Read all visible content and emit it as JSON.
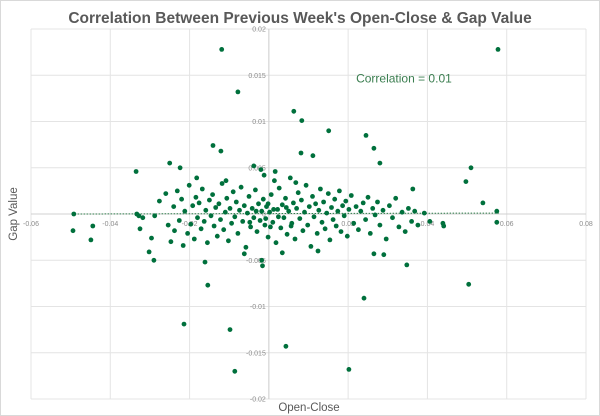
{
  "chart_data": {
    "type": "scatter",
    "title": "Correlation Between Previous Week's Open-Close & Gap Value",
    "xlabel": "Open-Close",
    "ylabel": "Gap Value",
    "xlim": [
      -0.06,
      0.08
    ],
    "ylim": [
      -0.02,
      0.02
    ],
    "xticks": [
      -0.06,
      -0.04,
      -0.02,
      0,
      0.02,
      0.04,
      0.06,
      0.08
    ],
    "xtick_labels": [
      "-0.06",
      "-0.04",
      "-0.02",
      "0",
      "0.02",
      "0.04",
      "0.06",
      "0.08"
    ],
    "yticks": [
      -0.02,
      -0.015,
      -0.01,
      -0.005,
      0,
      0.005,
      0.01,
      0.015,
      0.02
    ],
    "ytick_labels": [
      "-0.02",
      "-0.015",
      "-0.01",
      "-0.005",
      "0",
      "0.005",
      "0.01",
      "0.015",
      "0.02"
    ],
    "grid": true,
    "annotation": {
      "text": "Correlation = 0.01",
      "x": 0.022,
      "y": 0.0142
    },
    "trendline": {
      "x": [
        -0.049,
        0.058
      ],
      "y": [
        0.0,
        0.0001
      ],
      "style": "dotted"
    },
    "point_color": "#00703c",
    "points": [
      [
        -0.0119,
        0.0178
      ],
      [
        0.0578,
        0.0178
      ],
      [
        -0.0078,
        0.0132
      ],
      [
        0.0063,
        0.0111
      ],
      [
        0.0083,
        0.0101
      ],
      [
        0.0151,
        0.009
      ],
      [
        0.0245,
        0.0085
      ],
      [
        0.0265,
        0.0071
      ],
      [
        -0.0141,
        0.0074
      ],
      [
        -0.0121,
        0.0068
      ],
      [
        0.0081,
        0.0066
      ],
      [
        0.0111,
        0.0063
      ],
      [
        0.028,
        0.0055
      ],
      [
        0.051,
        0.005
      ],
      [
        0.0497,
        0.0035
      ],
      [
        0.0363,
        0.0027
      ],
      [
        0.054,
        0.0012
      ],
      [
        0.0575,
        0.0003
      ],
      [
        0.0575,
        -0.0009
      ],
      [
        0.0504,
        -0.0076
      ],
      [
        -0.0492,
        0.0
      ],
      [
        -0.0494,
        -0.0018
      ],
      [
        -0.0449,
        -0.0028
      ],
      [
        -0.0444,
        -0.0013
      ],
      [
        -0.0214,
        -0.0119
      ],
      [
        -0.0098,
        -0.0125
      ],
      [
        -0.0086,
        -0.017
      ],
      [
        0.0043,
        -0.0143
      ],
      [
        0.0202,
        -0.0168
      ],
      [
        0.024,
        -0.0091
      ],
      [
        -0.0154,
        -0.0077
      ],
      [
        -0.0161,
        -0.0052
      ],
      [
        -0.029,
        -0.005
      ],
      [
        -0.0018,
        -0.005
      ],
      [
        0.0348,
        -0.0055
      ],
      [
        0.029,
        -0.0044
      ],
      [
        0.0265,
        -0.0043
      ],
      [
        0.0406,
        -0.0008
      ],
      [
        0.0439,
        -0.001
      ],
      [
        0.0441,
        -0.0013
      ],
      [
        -0.0335,
        0.0046
      ],
      [
        -0.025,
        0.0055
      ],
      [
        -0.0224,
        0.005
      ],
      [
        -0.0182,
        0.0039
      ],
      [
        -0.0038,
        0.0052
      ],
      [
        -0.002,
        0.0048
      ],
      [
        -0.0016,
        -0.0056
      ],
      [
        -0.0333,
        0.0
      ],
      [
        -0.0328,
        -0.0002
      ],
      [
        -0.0318,
        -0.0004
      ],
      [
        -0.0325,
        -0.0016
      ],
      [
        -0.0288,
        -0.0002
      ],
      [
        -0.0296,
        -0.0026
      ],
      [
        -0.0302,
        -0.0041
      ],
      [
        -0.0276,
        0.0014
      ],
      [
        -0.026,
        0.0022
      ],
      [
        -0.0254,
        -0.0012
      ],
      [
        -0.0247,
        -0.003
      ],
      [
        -0.024,
        0.0008
      ],
      [
        -0.0238,
        -0.0018
      ],
      [
        -0.0231,
        0.0025
      ],
      [
        -0.0226,
        -0.0007
      ],
      [
        -0.022,
        0.0016
      ],
      [
        -0.0216,
        -0.0034
      ],
      [
        -0.0212,
        0.0003
      ],
      [
        -0.0205,
        -0.0021
      ],
      [
        -0.0201,
        0.0031
      ],
      [
        -0.0197,
        -0.0011
      ],
      [
        -0.0192,
        0.0009
      ],
      [
        -0.0188,
        -0.0027
      ],
      [
        -0.0184,
        0.0018
      ],
      [
        -0.018,
        -0.0004
      ],
      [
        -0.0176,
        0.0012
      ],
      [
        -0.0171,
        -0.0016
      ],
      [
        -0.0168,
        0.0027
      ],
      [
        -0.0163,
        -0.0008
      ],
      [
        -0.0159,
        0.0004
      ],
      [
        -0.0155,
        -0.0031
      ],
      [
        -0.015,
        0.0015
      ],
      [
        -0.0146,
        -0.0002
      ],
      [
        -0.0142,
        0.0021
      ],
      [
        -0.0138,
        -0.0013
      ],
      [
        -0.0134,
        0.0007
      ],
      [
        -0.013,
        -0.0024
      ],
      [
        -0.0126,
        0.0011
      ],
      [
        -0.0122,
        -0.0006
      ],
      [
        -0.0118,
        0.0033
      ],
      [
        -0.0114,
        -0.0017
      ],
      [
        -0.011,
        0.0002
      ],
      [
        -0.0106,
        0.0017
      ],
      [
        -0.0102,
        -0.0029
      ],
      [
        -0.0098,
        0.0006
      ],
      [
        -0.0094,
        -0.001
      ],
      [
        -0.009,
        0.0024
      ],
      [
        -0.0086,
        -0.0003
      ],
      [
        -0.0082,
        0.0013
      ],
      [
        -0.0078,
        -0.0021
      ],
      [
        -0.0074,
        0.0004
      ],
      [
        -0.007,
        0.0029
      ],
      [
        -0.0066,
        -0.0008
      ],
      [
        -0.0062,
        0.0009
      ],
      [
        -0.0058,
        -0.0036
      ],
      [
        -0.0054,
        0.0001
      ],
      [
        -0.005,
        0.0019
      ],
      [
        -0.0046,
        -0.0014
      ],
      [
        -0.0042,
        0.0006
      ],
      [
        -0.0038,
        -0.0004
      ],
      [
        -0.0034,
        0.0026
      ],
      [
        -0.003,
        -0.0019
      ],
      [
        -0.0026,
        0.0011
      ],
      [
        -0.0022,
        -0.0007
      ],
      [
        -0.0018,
        0.0003
      ],
      [
        -0.0014,
        0.0016
      ],
      [
        -0.001,
        -0.0012
      ],
      [
        -0.0006,
        0.0008
      ],
      [
        -0.0002,
        -0.0025
      ],
      [
        0.0002,
        0.0002
      ],
      [
        0.0006,
        0.0021
      ],
      [
        0.001,
        -0.0009
      ],
      [
        0.0014,
        0.0036
      ],
      [
        0.0018,
        -0.0031
      ],
      [
        0.0022,
        0.0005
      ],
      [
        0.0026,
        0.0028
      ],
      [
        0.003,
        -0.0015
      ],
      [
        0.0034,
        0.001
      ],
      [
        0.0038,
        -0.0004
      ],
      [
        0.0042,
        0.0017
      ],
      [
        0.0046,
        -0.0022
      ],
      [
        0.005,
        0.0003
      ],
      [
        0.0054,
        0.0039
      ],
      [
        0.0058,
        -0.001
      ],
      [
        0.0062,
        0.0012
      ],
      [
        0.0066,
        -0.0027
      ],
      [
        0.007,
        0.0006
      ],
      [
        0.0074,
        0.0023
      ],
      [
        0.0078,
        -0.0005
      ],
      [
        0.0082,
        0.0015
      ],
      [
        0.0086,
        -0.0018
      ],
      [
        0.009,
        0.0002
      ],
      [
        0.0094,
        0.0031
      ],
      [
        0.0098,
        -0.0012
      ],
      [
        0.0102,
        0.0008
      ],
      [
        0.0106,
        -0.0035
      ],
      [
        0.011,
        0.0019
      ],
      [
        0.0114,
        -0.0003
      ],
      [
        0.0118,
        0.0011
      ],
      [
        0.0122,
        -0.0021
      ],
      [
        0.0126,
        0.0004
      ],
      [
        0.013,
        0.0027
      ],
      [
        0.0134,
        -0.0009
      ],
      [
        0.0138,
        0.0013
      ],
      [
        0.0142,
        -0.0016
      ],
      [
        0.0146,
        0.0001
      ],
      [
        0.015,
        0.0022
      ],
      [
        0.0154,
        -0.0028
      ],
      [
        0.0158,
        0.0007
      ],
      [
        0.0162,
        -0.0006
      ],
      [
        0.0166,
        0.0016
      ],
      [
        0.017,
        -0.0013
      ],
      [
        0.0174,
        0.0003
      ],
      [
        0.0178,
        0.0025
      ],
      [
        0.0182,
        -0.0019
      ],
      [
        0.0186,
        0.0009
      ],
      [
        0.019,
        -0.0002
      ],
      [
        0.0194,
        0.0014
      ],
      [
        0.0198,
        -0.0024
      ],
      [
        0.0202,
        0.0005
      ],
      [
        0.0208,
        0.002
      ],
      [
        0.0214,
        -0.001
      ],
      [
        0.022,
        0.0008
      ],
      [
        0.0226,
        -0.0017
      ],
      [
        0.0232,
        0.0003
      ],
      [
        0.0238,
        0.0012
      ],
      [
        0.0244,
        -0.0006
      ],
      [
        0.025,
        0.0018
      ],
      [
        0.0256,
        -0.0021
      ],
      [
        0.0262,
        0.0006
      ],
      [
        0.0268,
        -0.0001
      ],
      [
        0.0274,
        0.0013
      ],
      [
        0.028,
        -0.0012
      ],
      [
        0.0288,
        0.0004
      ],
      [
        0.0296,
        -0.0027
      ],
      [
        0.0304,
        0.0009
      ],
      [
        0.0312,
        -0.0004
      ],
      [
        0.032,
        0.0017
      ],
      [
        0.0328,
        -0.0014
      ],
      [
        0.0336,
        0.0002
      ],
      [
        0.0344,
        -0.0019
      ],
      [
        0.0352,
        0.0006
      ],
      [
        0.036,
        -0.0008
      ],
      [
        0.0368,
        0.0003
      ],
      [
        0.0376,
        -0.0012
      ],
      [
        0.0392,
        0.0001
      ],
      [
        -0.0012,
        0.0042
      ],
      [
        0.0016,
        0.0046
      ],
      [
        0.0034,
        -0.0042
      ],
      [
        -0.0062,
        -0.0043
      ],
      [
        0.0068,
        0.0034
      ],
      [
        -0.0108,
        0.0036
      ],
      [
        0.0124,
        -0.004
      ],
      [
        -0.0002,
        0.0011
      ],
      [
        0.0004,
        -0.0014
      ],
      [
        0.0012,
        0.0005
      ],
      [
        -0.0008,
        -0.0005
      ],
      [
        0.0024,
        -0.0003
      ],
      [
        -0.0032,
        0.0003
      ],
      [
        0.0044,
        0.0007
      ],
      [
        -0.0048,
        -0.0009
      ],
      [
        0.0056,
        -0.0013
      ]
    ]
  }
}
